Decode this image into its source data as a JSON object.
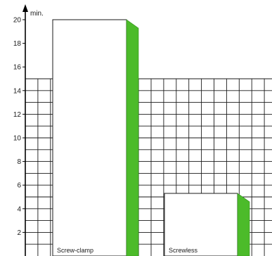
{
  "chart_data": {
    "type": "bar",
    "unit": "min.",
    "ylim": [
      0,
      20
    ],
    "y_ticks": [
      2,
      4,
      6,
      8,
      10,
      12,
      14,
      16,
      18,
      20
    ],
    "grid_max": 15,
    "grid": true,
    "categories": [
      "Screw-clamp",
      "Screwless"
    ],
    "values": [
      20,
      5.3
    ],
    "colors": {
      "bar_fill": "#ffffff",
      "bar_side": "#4cbb2a",
      "bar_side_dark": "#2f8f1a",
      "grid": "#1a1a1a",
      "axis": "#000000"
    }
  }
}
